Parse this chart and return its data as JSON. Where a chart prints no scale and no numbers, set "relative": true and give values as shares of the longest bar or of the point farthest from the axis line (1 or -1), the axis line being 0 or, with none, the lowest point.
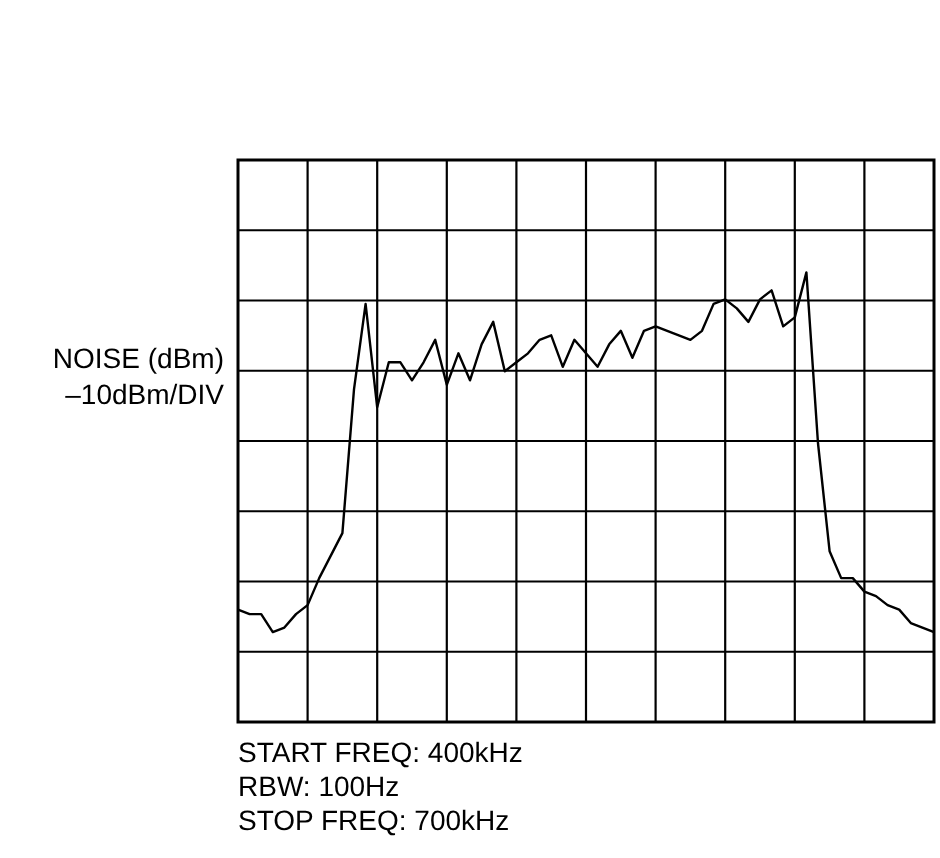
{
  "chart_data": {
    "type": "line",
    "ylabel": "NOISE (dBm)",
    "relative": true,
    "grid": true,
    "marker": "none",
    "line_style": "solid",
    "annotations": [
      "–10dBm/DIV",
      "START FREQ: 400kHz",
      "RBW: 100Hz",
      "STOP FREQ: 700kHz"
    ],
    "categories": [
      null,
      null,
      null,
      null,
      null,
      null,
      null,
      null,
      null,
      null,
      null,
      null,
      null,
      null,
      null,
      null,
      null,
      null,
      null,
      null,
      null,
      null,
      null,
      null,
      null,
      null,
      null,
      null,
      null,
      null,
      null,
      null,
      null,
      null,
      null,
      null,
      null,
      null,
      null,
      null,
      null,
      null,
      null,
      null,
      null,
      null,
      null,
      null,
      null,
      null,
      null,
      null,
      null,
      null,
      null,
      null,
      null,
      null,
      null,
      null,
      null
    ],
    "series": [
      {
        "color": "#000000",
        "values": [
          0.25,
          0.24,
          0.24,
          0.2,
          0.21,
          0.24,
          0.26,
          0.32,
          0.37,
          0.42,
          0.74,
          0.93,
          0.7,
          0.8,
          0.8,
          0.76,
          0.8,
          0.85,
          0.75,
          0.82,
          0.76,
          0.84,
          0.89,
          0.78,
          0.8,
          0.82,
          0.85,
          0.86,
          0.79,
          0.85,
          0.82,
          0.79,
          0.84,
          0.87,
          0.81,
          0.87,
          0.88,
          0.87,
          0.86,
          0.85,
          0.87,
          0.93,
          0.94,
          0.92,
          0.89,
          0.94,
          0.96,
          0.88,
          0.9,
          1.0,
          0.62,
          0.38,
          0.32,
          0.32,
          0.29,
          0.28,
          0.26,
          0.25,
          0.22,
          0.21,
          0.2
        ]
      }
    ]
  }
}
